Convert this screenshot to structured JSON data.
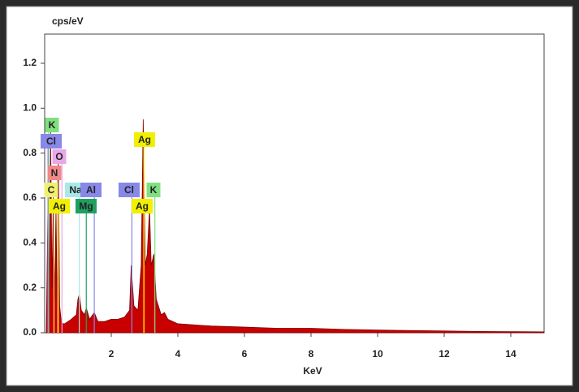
{
  "chart_data": {
    "type": "area",
    "x_label": "KeV",
    "y_label": "cps/eV",
    "xlim": [
      0,
      15
    ],
    "ylim": [
      0,
      1.33
    ],
    "xticks": [
      2,
      4,
      6,
      8,
      10,
      12,
      14
    ],
    "yticks": [
      {
        "value": 0,
        "label": "0.0"
      },
      {
        "value": 0.2,
        "label": "0.2"
      },
      {
        "value": 0.4,
        "label": "0.4"
      },
      {
        "value": 0.6,
        "label": "0.6"
      },
      {
        "value": 0.8,
        "label": "0.8"
      },
      {
        "value": 1.0,
        "label": "1.0"
      },
      {
        "value": 1.2,
        "label": "1.2"
      }
    ],
    "color": "#c80000",
    "x": [
      0.05,
      0.1,
      0.13,
      0.18,
      0.22,
      0.26,
      0.3,
      0.34,
      0.38,
      0.41,
      0.45,
      0.5,
      0.55,
      0.6,
      0.8,
      0.95,
      1.0,
      1.04,
      1.1,
      1.2,
      1.25,
      1.35,
      1.49,
      1.6,
      1.8,
      2.0,
      2.2,
      2.4,
      2.55,
      2.6,
      2.68,
      2.8,
      2.9,
      2.96,
      3.02,
      3.08,
      3.15,
      3.2,
      3.28,
      3.35,
      3.5,
      3.6,
      3.7,
      4,
      5,
      6,
      7,
      8,
      9,
      10,
      11,
      12,
      13,
      14,
      15
    ],
    "values": [
      0.0,
      0.6,
      0.1,
      0.9,
      0.2,
      0.62,
      0.15,
      0.55,
      0.1,
      0.8,
      0.12,
      0.05,
      0.04,
      0.04,
      0.06,
      0.08,
      0.15,
      0.17,
      0.1,
      0.08,
      0.11,
      0.06,
      0.09,
      0.05,
      0.05,
      0.06,
      0.06,
      0.07,
      0.1,
      0.3,
      0.12,
      0.1,
      0.3,
      0.95,
      0.3,
      0.35,
      0.55,
      0.3,
      0.35,
      0.15,
      0.08,
      0.09,
      0.06,
      0.04,
      0.03,
      0.025,
      0.02,
      0.02,
      0.015,
      0.012,
      0.01,
      0.008,
      0.006,
      0.005,
      0.004
    ],
    "markers": [
      {
        "label": "K",
        "energy": 0.12,
        "color": "#80e080"
      },
      {
        "label": "Cl",
        "energy": 0.1,
        "color": "#8888e8"
      },
      {
        "label": "O",
        "energy": 0.52,
        "color": "#e8a8e8"
      },
      {
        "label": "N",
        "energy": 0.39,
        "color": "#f08888"
      },
      {
        "label": "C",
        "energy": 0.28,
        "color": "#f0f070"
      },
      {
        "label": "Ag",
        "energy": 0.41,
        "color": "#f0f000"
      },
      {
        "label": "Na",
        "energy": 1.04,
        "color": "#a8e8e8"
      },
      {
        "label": "Al",
        "energy": 1.49,
        "color": "#8888e8"
      },
      {
        "label": "Mg",
        "energy": 1.25,
        "color": "#20a060"
      },
      {
        "label": "Cl",
        "energy": 2.62,
        "color": "#8888e8"
      },
      {
        "label": "K",
        "energy": 3.31,
        "color": "#80e080"
      },
      {
        "label": "Ag",
        "energy": 2.98,
        "color": "#f0f000"
      },
      {
        "label": "Ag",
        "energy": 2.98,
        "color": "#f0f000"
      }
    ]
  }
}
